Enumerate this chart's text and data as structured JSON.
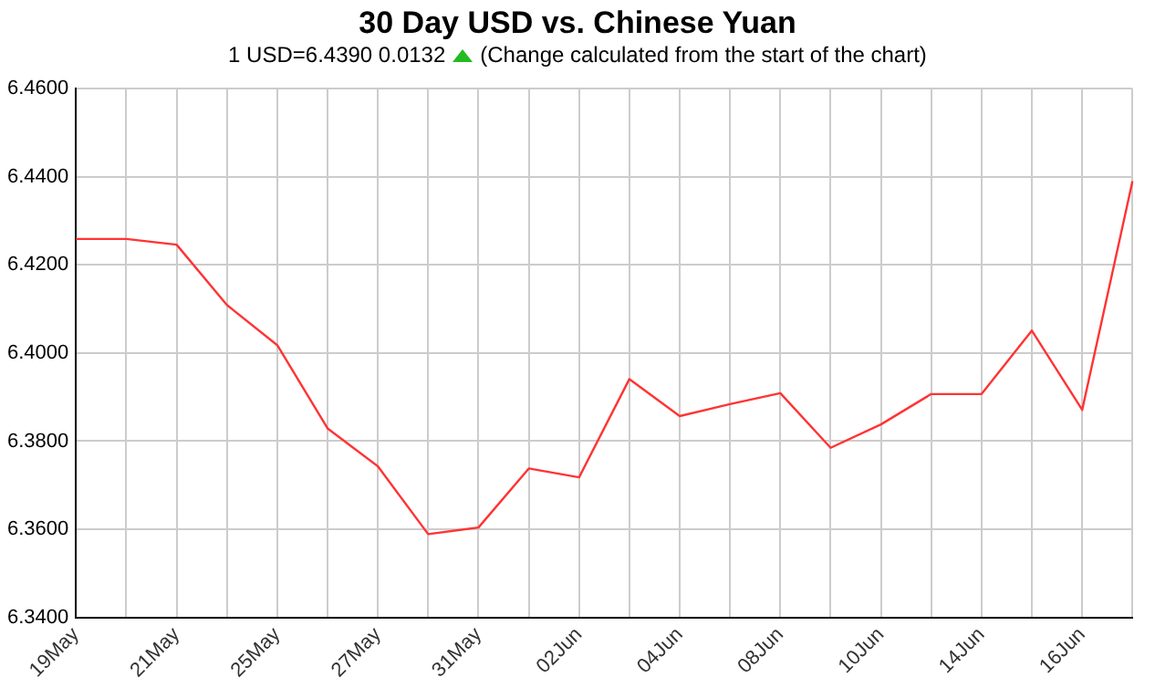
{
  "chart_data": {
    "type": "line",
    "title": "30 Day USD vs. Chinese Yuan",
    "subtitle": "1 USD=6.4390  0.0132",
    "annotations": [
      "(Change calculated from the start of the chart)"
    ],
    "categories": [
      "19May",
      null,
      "21May",
      null,
      "25May",
      null,
      "27May",
      null,
      "31May",
      null,
      "02Jun",
      null,
      "04Jun",
      null,
      "08Jun",
      null,
      "10Jun",
      null,
      "14Jun",
      null,
      "16Jun",
      null
    ],
    "series": [
      {
        "color": "#ff3333",
        "values": [
          6.4259,
          6.4259,
          6.4246,
          6.4109,
          6.4018,
          6.3829,
          6.3743,
          6.3589,
          6.3604,
          6.3738,
          6.3718,
          6.3941,
          6.3857,
          6.3884,
          6.3909,
          6.3785,
          6.3838,
          6.3907,
          6.3907,
          6.4051,
          6.3871,
          6.439
        ]
      }
    ],
    "ylim": [
      6.34,
      6.46
    ],
    "yticks": [
      {
        "value": 6.34,
        "label": "6.3400"
      },
      {
        "value": 6.36,
        "label": "6.3600"
      },
      {
        "value": 6.38,
        "label": "6.3800"
      },
      {
        "value": 6.4,
        "label": "6.4000"
      },
      {
        "value": 6.42,
        "label": "6.4200"
      },
      {
        "value": 6.44,
        "label": "6.4400"
      },
      {
        "value": 6.46,
        "label": "6.4600"
      }
    ],
    "grid": true,
    "marker": "none",
    "line_style": "solid",
    "legend": false
  }
}
